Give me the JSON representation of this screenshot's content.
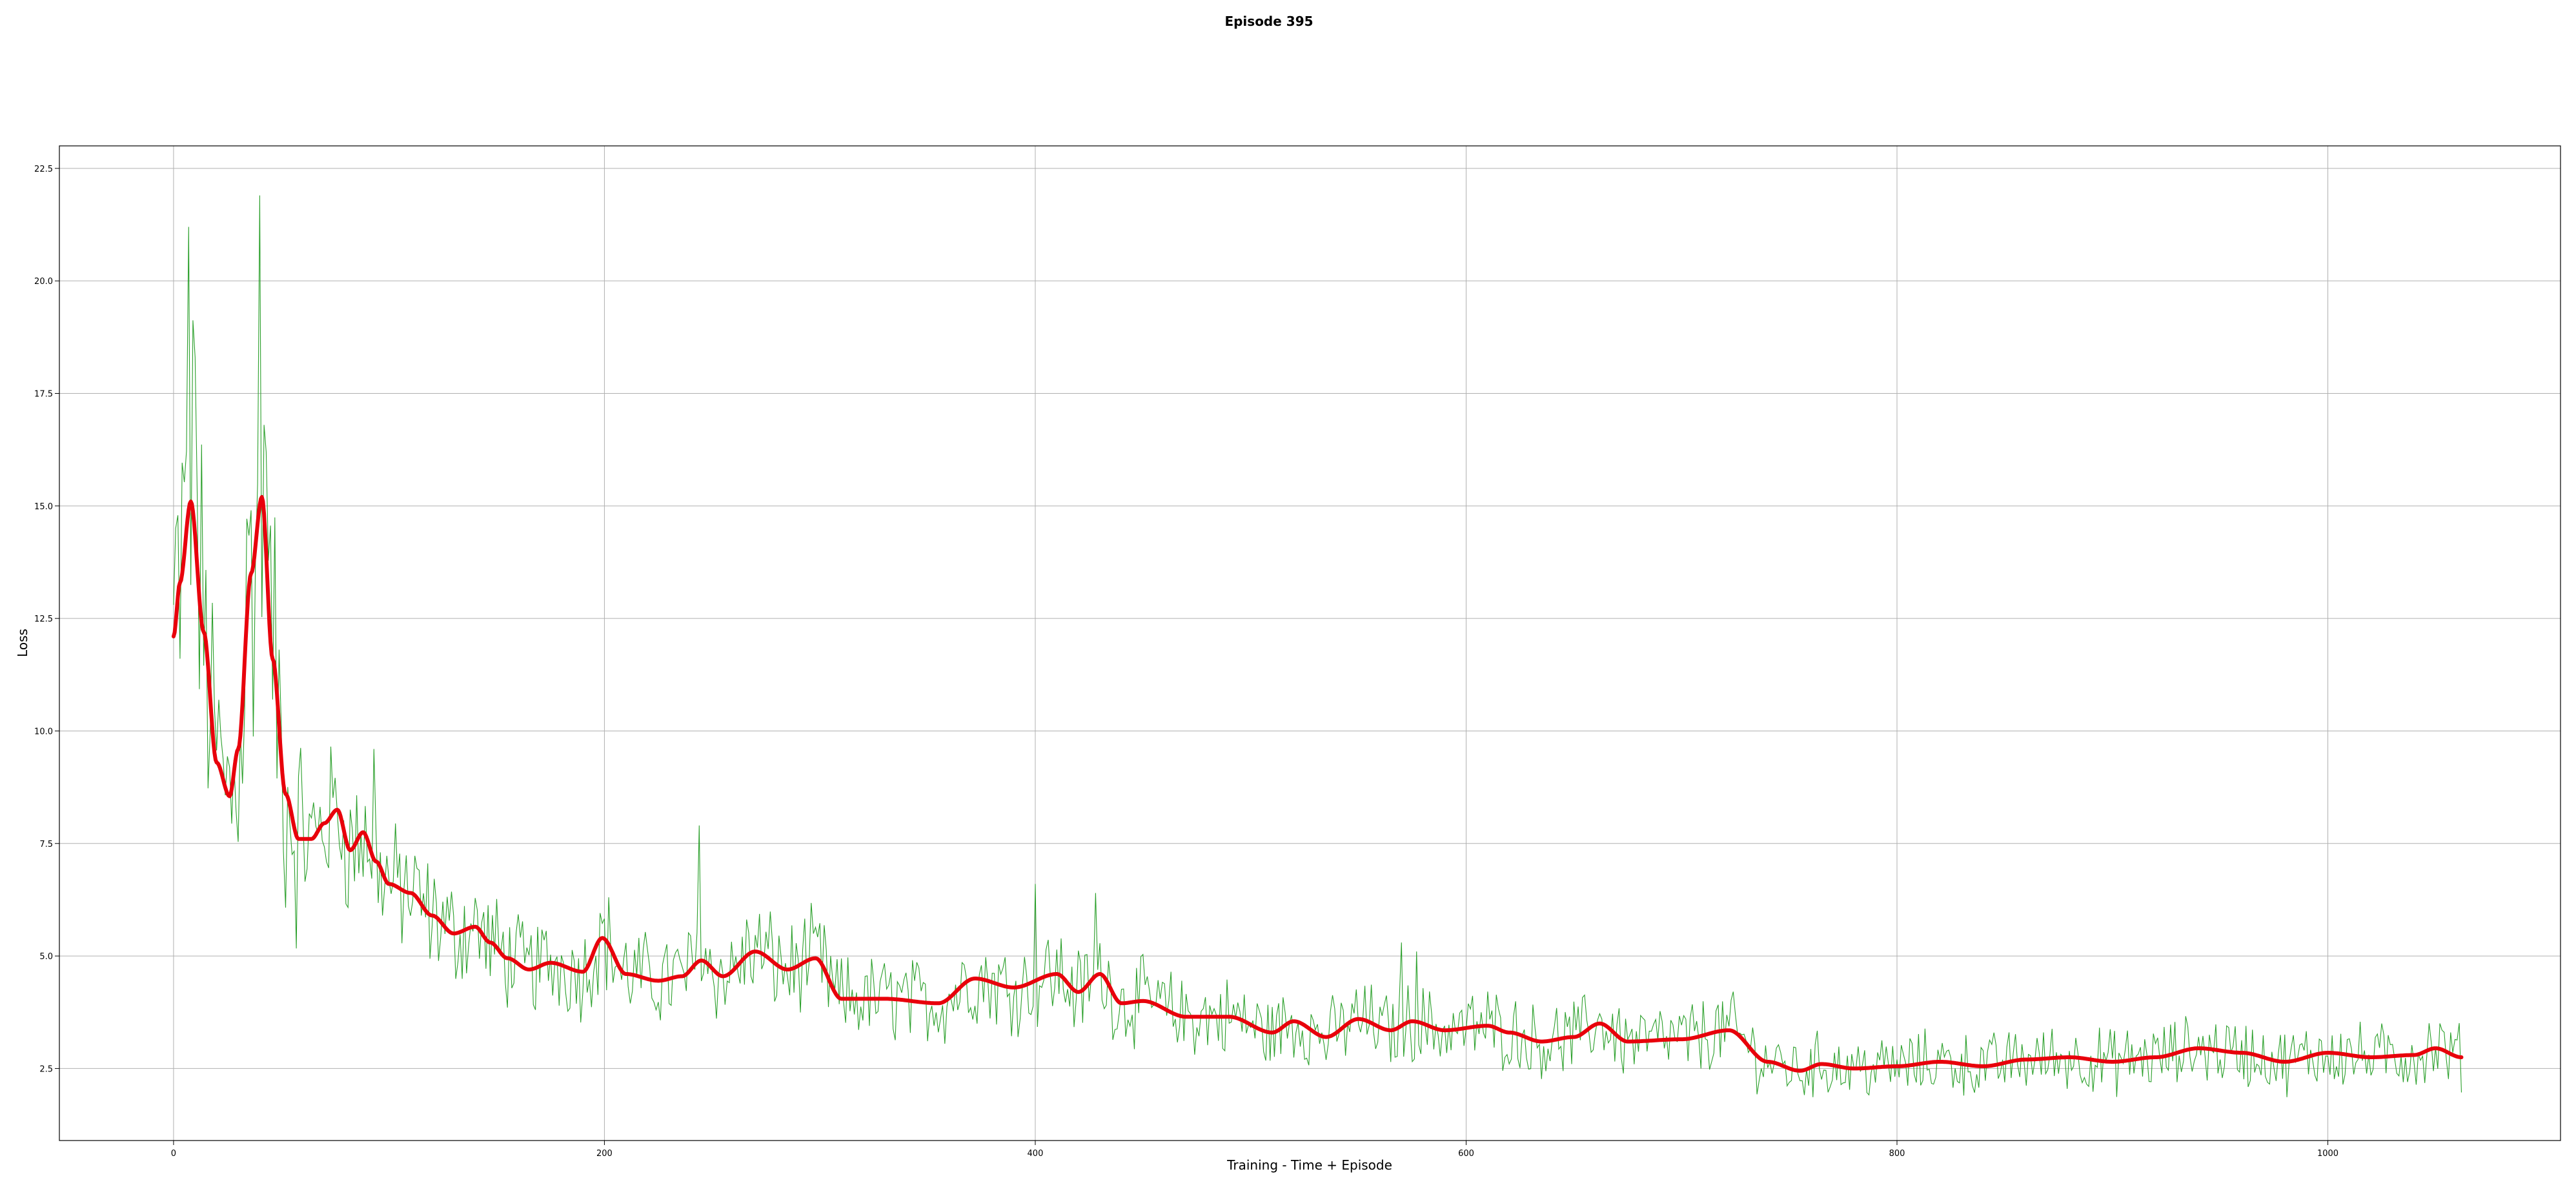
{
  "chart_data": {
    "type": "line",
    "title": "Episode 395",
    "xlabel": "Training - Time + Episode",
    "ylabel": "Loss",
    "xlim": [
      -53,
      1108
    ],
    "ylim": [
      0.9,
      23.0
    ],
    "xticks": [
      0,
      200,
      400,
      600,
      800,
      1000
    ],
    "xtick_labels": [
      "0",
      "200",
      "400",
      "600",
      "800",
      "1000"
    ],
    "yticks": [
      2.5,
      5.0,
      7.5,
      10.0,
      12.5,
      15.0,
      17.5,
      20.0,
      22.5
    ],
    "ytick_labels": [
      "2.5",
      "5.0",
      "7.5",
      "10.0",
      "12.5",
      "15.0",
      "17.5",
      "20.0",
      "22.5"
    ],
    "grid": true,
    "series": [
      {
        "role": "raw",
        "color": "#2ca02c",
        "generated": true,
        "x_range": [
          0,
          1062
        ]
      },
      {
        "role": "smoothed",
        "color": "#e8000b",
        "x": [
          0,
          3,
          8,
          14,
          20,
          26,
          30,
          36,
          41,
          46,
          52,
          58,
          64,
          70,
          76,
          82,
          88,
          94,
          100,
          110,
          120,
          130,
          140,
          147,
          155,
          165,
          175,
          190,
          199,
          210,
          225,
          236,
          245,
          255,
          270,
          285,
          298,
          310,
          330,
          355,
          372,
          390,
          410,
          420,
          430,
          440,
          450,
          470,
          490,
          510,
          520,
          535,
          550,
          565,
          575,
          590,
          610,
          620,
          635,
          650,
          662,
          675,
          700,
          722,
          740,
          755,
          765,
          780,
          800,
          820,
          840,
          860,
          880,
          900,
          920,
          940,
          960,
          980,
          1000,
          1020,
          1040,
          1050,
          1062
        ],
        "y": [
          12.1,
          13.3,
          15.1,
          12.2,
          9.3,
          8.55,
          9.6,
          13.5,
          15.2,
          11.6,
          8.6,
          7.6,
          7.6,
          7.95,
          8.25,
          7.35,
          7.75,
          7.1,
          6.6,
          6.4,
          5.9,
          5.5,
          5.65,
          5.3,
          4.95,
          4.7,
          4.85,
          4.65,
          5.4,
          4.6,
          4.45,
          4.55,
          4.9,
          4.55,
          5.1,
          4.7,
          4.95,
          4.05,
          4.05,
          3.95,
          4.5,
          4.3,
          4.6,
          4.2,
          4.6,
          3.95,
          4.0,
          3.65,
          3.65,
          3.3,
          3.55,
          3.2,
          3.6,
          3.35,
          3.55,
          3.35,
          3.45,
          3.3,
          3.1,
          3.2,
          3.5,
          3.1,
          3.15,
          3.35,
          2.65,
          2.45,
          2.6,
          2.5,
          2.55,
          2.65,
          2.55,
          2.7,
          2.75,
          2.65,
          2.75,
          2.95,
          2.85,
          2.65,
          2.85,
          2.75,
          2.8,
          2.95,
          2.75
        ]
      }
    ]
  }
}
